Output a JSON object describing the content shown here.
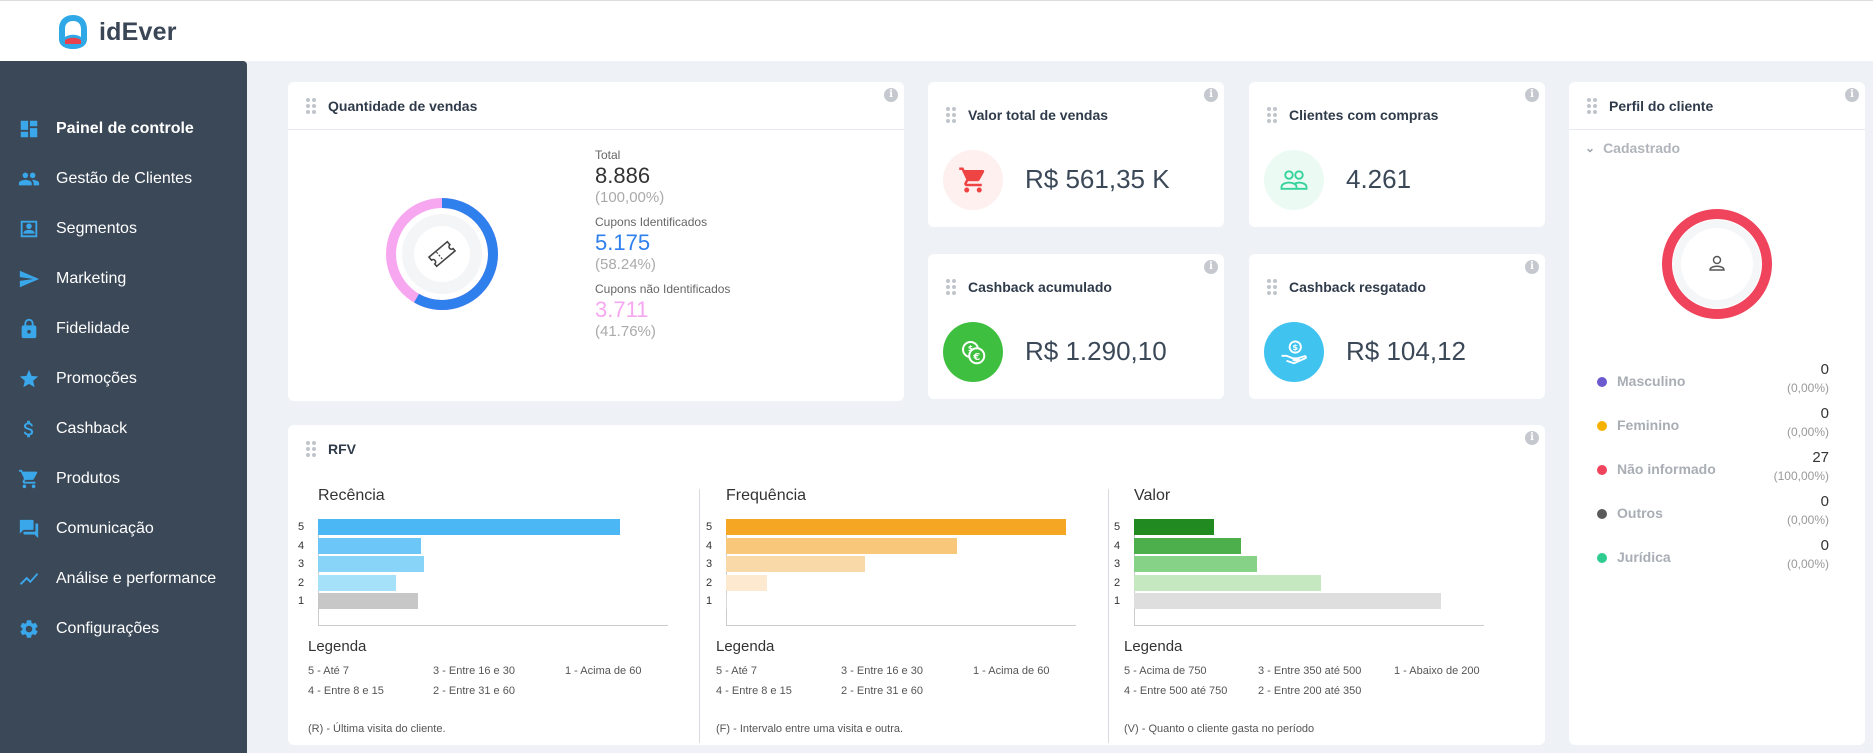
{
  "app": {
    "brand": "idEver"
  },
  "sidebar": {
    "items": [
      {
        "label": "Painel de controle",
        "icon": "dashboard-icon"
      },
      {
        "label": "Gestão de Clientes",
        "icon": "people-icon"
      },
      {
        "label": "Segmentos",
        "icon": "contact-card-icon"
      },
      {
        "label": "Marketing",
        "icon": "paper-plane-icon"
      },
      {
        "label": "Fidelidade",
        "icon": "lock-icon"
      },
      {
        "label": "Promoções",
        "icon": "star-icon"
      },
      {
        "label": "Cashback",
        "icon": "dollar-icon"
      },
      {
        "label": "Produtos",
        "icon": "cart-icon"
      },
      {
        "label": "Comunicação",
        "icon": "chat-icon"
      },
      {
        "label": "Análise e performance",
        "icon": "trend-icon"
      },
      {
        "label": "Configurações",
        "icon": "gear-icon"
      }
    ]
  },
  "vendas": {
    "title": "Quantidade de vendas",
    "total_label": "Total",
    "total_value": "8.886",
    "total_pct": "(100,00%)",
    "ident_label": "Cupons Identificados",
    "ident_value": "5.175",
    "ident_pct": "(58.24%)",
    "nao_ident_label": "Cupons não Identificados",
    "nao_ident_value": "3.711",
    "nao_ident_pct": "(41.76%)",
    "ident_fraction": 0.5824,
    "colors": {
      "ident": "#2f80ed",
      "nao_ident": "#f7a6f0"
    }
  },
  "metrics": {
    "valor_total": {
      "title": "Valor total de vendas",
      "value": "R$ 561,35 K",
      "icon": "cart-icon",
      "color": "#ef4444"
    },
    "clientes": {
      "title": "Clientes com compras",
      "value": "4.261",
      "icon": "people-icon",
      "color": "#34d399"
    },
    "cashback_acum": {
      "title": "Cashback acumulado",
      "value": "R$ 1.290,10",
      "icon": "coins-icon",
      "color": "#3fbf3f"
    },
    "cashback_resg": {
      "title": "Cashback resgatado",
      "value": "R$ 104,12",
      "icon": "hand-money-icon",
      "color": "#41c3f0"
    }
  },
  "rfv": {
    "title": "RFV",
    "legend_title": "Legenda",
    "recencia": {
      "title": "Recência",
      "legend": [
        "5 - Até 7",
        "3 - Entre 16 e 30",
        "1 - Acima de 60",
        "4 - Entre 8 e 15",
        "2 - Entre 31 e 60"
      ],
      "note": "(R) - Última visita do cliente."
    },
    "frequencia": {
      "title": "Frequência",
      "legend": [
        "5 - Até 7",
        "3 - Entre 16 e 30",
        "1 - Acima de 60",
        "4 - Entre 8 e 15",
        "2 - Entre 31 e 60"
      ],
      "note": "(F) - Intervalo entre uma visita e outra."
    },
    "valor": {
      "title": "Valor",
      "legend": [
        "5 - Acima de 750",
        "3 - Entre 350 até 500",
        "1 - Abaixo de 200",
        "4 - Entre 500 até 750",
        "2 - Entre 200 até 350"
      ],
      "note": "(V) - Quanto o cliente gasta no período"
    }
  },
  "chart_data": [
    {
      "type": "bar",
      "title": "Recência",
      "categories": [
        "5",
        "4",
        "3",
        "2",
        "1"
      ],
      "values": [
        100,
        34,
        35,
        26,
        33
      ],
      "xlim": [
        0,
        116
      ],
      "colors": [
        "#4bb8f5",
        "#6cc6f7",
        "#88d3f8",
        "#a6e1fa",
        "#c7c7c7"
      ]
    },
    {
      "type": "bar",
      "title": "Frequência",
      "categories": [
        "5",
        "4",
        "3",
        "2",
        "1"
      ],
      "values": [
        100,
        68,
        41,
        12,
        0.4
      ],
      "xlim": [
        0,
        103
      ],
      "colors": [
        "#f5a623",
        "#f8c77a",
        "#fad9a8",
        "#fde9cf",
        "#d8d8d8"
      ]
    },
    {
      "type": "bar",
      "title": "Valor",
      "categories": [
        "5",
        "4",
        "3",
        "2",
        "1"
      ],
      "values": [
        26,
        35,
        40,
        61,
        100
      ],
      "xlim": [
        0,
        114
      ],
      "colors": [
        "#218a21",
        "#4caf4c",
        "#86d286",
        "#c5e8c0",
        "#dedede"
      ]
    }
  ],
  "perfil": {
    "title": "Perfil do cliente",
    "section": "Cadastrado",
    "rows": [
      {
        "label": "Masculino",
        "count": "0",
        "pct": "(0,00%)",
        "color": "#6a5acd"
      },
      {
        "label": "Feminino",
        "count": "0",
        "pct": "(0,00%)",
        "color": "#f5b300"
      },
      {
        "label": "Não informado",
        "count": "27",
        "pct": "(100,00%)",
        "color": "#f0435c"
      },
      {
        "label": "Outros",
        "count": "0",
        "pct": "(0,00%)",
        "color": "#5a5a5a"
      },
      {
        "label": "Jurídica",
        "count": "0",
        "pct": "(0,00%)",
        "color": "#2ecc8f"
      }
    ]
  }
}
